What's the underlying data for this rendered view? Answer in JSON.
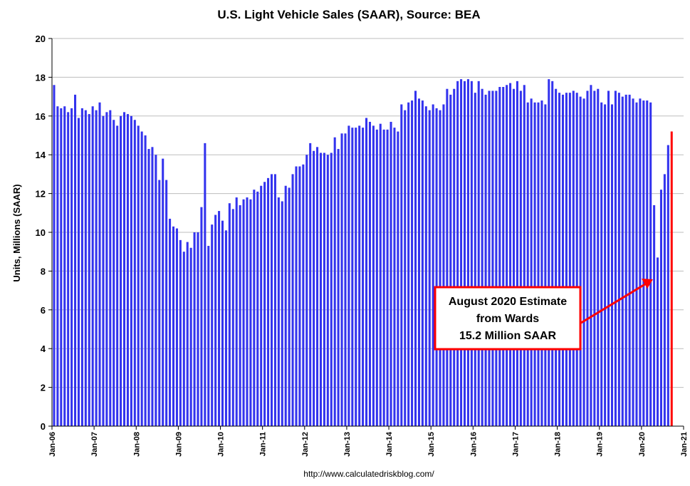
{
  "chart_data": {
    "type": "bar",
    "title": "U.S. Light Vehicle Sales (SAAR), Source: BEA",
    "xlabel": "",
    "ylabel": "Units, Millions (SAAR)",
    "ylim": [
      0,
      20
    ],
    "yticks": [
      0,
      2,
      4,
      6,
      8,
      10,
      12,
      14,
      16,
      18,
      20
    ],
    "xticks": [
      "Jan-06",
      "Jan-07",
      "Jan-08",
      "Jan-09",
      "Jan-10",
      "Jan-11",
      "Jan-12",
      "Jan-13",
      "Jan-14",
      "Jan-15",
      "Jan-16",
      "Jan-17",
      "Jan-18",
      "Jan-19",
      "Jan-20",
      "Jan-21"
    ],
    "x_start": "Jan-06",
    "bar_color": "#3333ee",
    "values": [
      17.6,
      16.5,
      16.4,
      16.5,
      16.2,
      16.4,
      17.1,
      15.9,
      16.4,
      16.3,
      16.1,
      16.5,
      16.3,
      16.7,
      16.0,
      16.2,
      16.3,
      15.8,
      15.5,
      16.0,
      16.2,
      16.1,
      16.0,
      15.8,
      15.5,
      15.2,
      15.0,
      14.3,
      14.4,
      14.0,
      12.7,
      13.8,
      12.7,
      10.7,
      10.3,
      10.2,
      9.6,
      9.0,
      9.5,
      9.2,
      10.0,
      10.0,
      11.3,
      14.6,
      9.3,
      10.4,
      10.9,
      11.1,
      10.6,
      10.1,
      11.5,
      11.2,
      11.8,
      11.4,
      11.7,
      11.8,
      11.7,
      12.2,
      12.1,
      12.4,
      12.6,
      12.8,
      13.0,
      13.0,
      11.8,
      11.6,
      12.4,
      12.3,
      13.0,
      13.4,
      13.4,
      13.5,
      14.0,
      14.6,
      14.2,
      14.4,
      14.1,
      14.1,
      14.0,
      14.1,
      14.9,
      14.3,
      15.1,
      15.1,
      15.5,
      15.4,
      15.4,
      15.5,
      15.4,
      15.9,
      15.7,
      15.5,
      15.3,
      15.6,
      15.3,
      15.3,
      15.7,
      15.4,
      15.2,
      16.6,
      16.3,
      16.7,
      16.8,
      17.3,
      16.9,
      16.8,
      16.5,
      16.3,
      16.6,
      16.4,
      16.3,
      16.6,
      17.4,
      17.1,
      17.4,
      17.8,
      17.9,
      17.8,
      17.9,
      17.8,
      17.2,
      17.8,
      17.4,
      17.1,
      17.3,
      17.3,
      17.3,
      17.5,
      17.5,
      17.6,
      17.7,
      17.4,
      17.8,
      17.3,
      17.6,
      16.7,
      16.9,
      16.7,
      16.7,
      16.8,
      16.6,
      17.9,
      17.8,
      17.4,
      17.2,
      17.1,
      17.2,
      17.2,
      17.3,
      17.2,
      17.0,
      16.9,
      17.3,
      17.6,
      17.3,
      17.4,
      16.7,
      16.6,
      17.3,
      16.6,
      17.3,
      17.2,
      17.0,
      17.1,
      17.1,
      16.9,
      16.7,
      16.9,
      16.8,
      16.8,
      16.7,
      11.4,
      8.7,
      12.2,
      13.0,
      14.5
    ],
    "highlight": {
      "label": "Aug-20",
      "value": 15.2,
      "color": "#ff0000"
    },
    "annotation": {
      "lines": [
        "August 2020 Estimate",
        "from Wards",
        "15.2 Million SAAR"
      ],
      "border_color": "#ff0000",
      "arrow_color": "#ff0000"
    },
    "source_text": "http://www.calculatedriskblog.com/"
  }
}
